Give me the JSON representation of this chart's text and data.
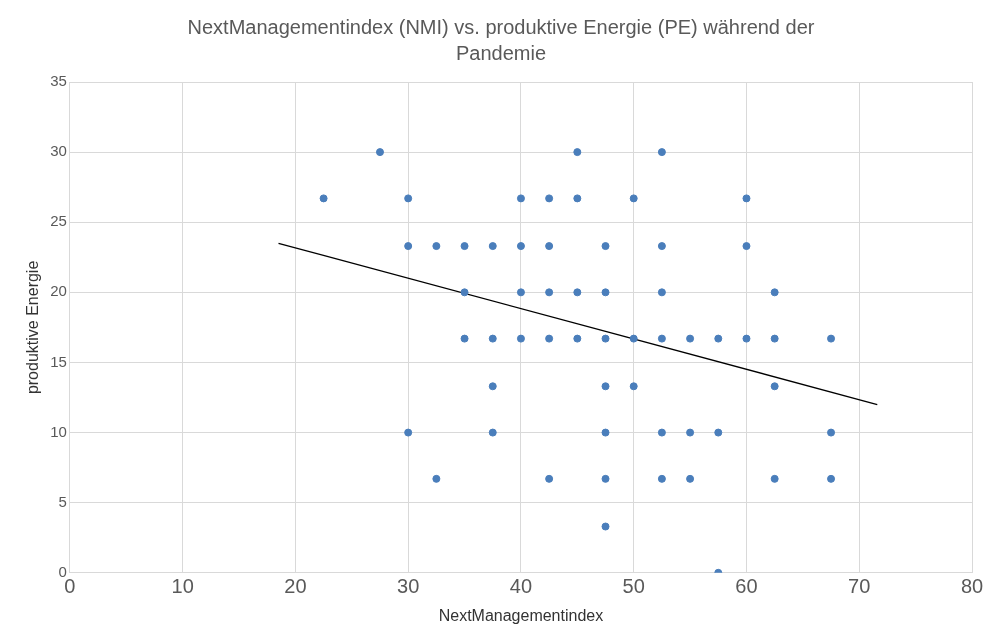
{
  "chart_data": {
    "type": "scatter",
    "title": "NextManagementindex (NMI) vs. produktive Energie (PE) während der Pandemie",
    "xlabel": "NextManagementindex",
    "ylabel": "produktive Energie",
    "xlim": [
      0,
      80
    ],
    "xticks": [
      0,
      10,
      20,
      30,
      40,
      50,
      60,
      70,
      80
    ],
    "ylim": [
      0,
      35
    ],
    "yticks": [
      0,
      5,
      10,
      15,
      20,
      25,
      30,
      35
    ],
    "grid": true,
    "series": [
      {
        "marker": "circle",
        "color": "#4a7ebb",
        "x": [
          27.5,
          45,
          52.5,
          22.5,
          30,
          40,
          42.5,
          45,
          50,
          60,
          30,
          32.5,
          35,
          37.5,
          40,
          42.5,
          47.5,
          52.5,
          60,
          35,
          40,
          42.5,
          45,
          47.5,
          52.5,
          62.5,
          35,
          37.5,
          40,
          42.5,
          45,
          47.5,
          50,
          52.5,
          55,
          57.5,
          60,
          62.5,
          67.5,
          37.5,
          47.5,
          50,
          62.5,
          30,
          37.5,
          47.5,
          52.5,
          55,
          57.5,
          67.5,
          32.5,
          42.5,
          47.5,
          52.5,
          55,
          62.5,
          67.5,
          47.5,
          57.5
        ],
        "values": [
          30,
          30,
          30,
          26.7,
          26.7,
          26.7,
          26.7,
          26.7,
          26.7,
          26.7,
          23.3,
          23.3,
          23.3,
          23.3,
          23.3,
          23.3,
          23.3,
          23.3,
          23.3,
          20,
          20,
          20,
          20,
          20,
          20,
          20,
          16.7,
          16.7,
          16.7,
          16.7,
          16.7,
          16.7,
          16.7,
          16.7,
          16.7,
          16.7,
          16.7,
          16.7,
          16.7,
          13.3,
          13.3,
          13.3,
          13.3,
          10,
          10,
          10,
          10,
          10,
          10,
          10,
          6.7,
          6.7,
          6.7,
          6.7,
          6.7,
          6.7,
          6.7,
          3.3,
          0
        ]
      },
      {
        "type": "line",
        "marker": "none",
        "color": "#000000",
        "x": [
          18.5,
          71.6
        ],
        "values": [
          23.5,
          12.0
        ]
      }
    ]
  }
}
